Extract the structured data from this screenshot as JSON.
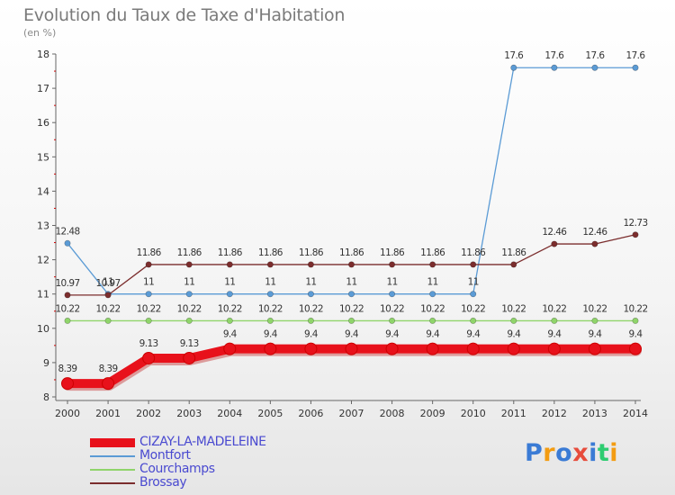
{
  "header": {
    "title": "Evolution du Taux de Taxe d'Habitation",
    "unit": "(en %)"
  },
  "logo": {
    "text": "Proxiti",
    "colors": [
      "#3a7bd5",
      "#f39c12",
      "#3a7bd5",
      "#e74c3c",
      "#3a7bd5",
      "#2ecc71",
      "#f39c12"
    ]
  },
  "chart_data": {
    "type": "line",
    "title": "Evolution du Taux de Taxe d'Habitation",
    "ylabel": "(en %)",
    "xlabel": "",
    "ylim": [
      8,
      18
    ],
    "yticks": [
      8,
      9,
      10,
      11,
      12,
      13,
      14,
      15,
      16,
      17,
      18
    ],
    "grid": false,
    "legend_position": "bottom-left",
    "x": [
      2000,
      2001,
      2002,
      2003,
      2004,
      2005,
      2006,
      2007,
      2008,
      2009,
      2010,
      2011,
      2012,
      2013,
      2014
    ],
    "series": [
      {
        "name": "Montfort",
        "color": "#5b9bd5",
        "style": "thin",
        "values": [
          12.48,
          11,
          11,
          11,
          11,
          11,
          11,
          11,
          11,
          11,
          11,
          17.6,
          17.6,
          17.6,
          17.6
        ],
        "labels": [
          "12.48",
          "11",
          "11",
          "11",
          "11",
          "11",
          "11",
          "11",
          "11",
          "11",
          "11",
          "17.6",
          "17.6",
          "17.6",
          "17.6"
        ]
      },
      {
        "name": "Brossay",
        "color": "#7b2d2d",
        "style": "thin",
        "values": [
          10.97,
          10.97,
          11.86,
          11.86,
          11.86,
          11.86,
          11.86,
          11.86,
          11.86,
          11.86,
          11.86,
          11.86,
          12.46,
          12.46,
          12.73
        ],
        "labels": [
          "10.97",
          "10.97",
          "11.86",
          "11.86",
          "11.86",
          "11.86",
          "11.86",
          "11.86",
          "11.86",
          "11.86",
          "11.86",
          "11.86",
          "12.46",
          "12.46",
          "12.73"
        ]
      },
      {
        "name": "Courchamps",
        "color": "#8fd46a",
        "style": "thin",
        "values": [
          10.22,
          10.22,
          10.22,
          10.22,
          10.22,
          10.22,
          10.22,
          10.22,
          10.22,
          10.22,
          10.22,
          10.22,
          10.22,
          10.22,
          10.22
        ],
        "labels": [
          "10.22",
          "10.22",
          "10.22",
          "10.22",
          "10.22",
          "10.22",
          "10.22",
          "10.22",
          "10.22",
          "10.22",
          "10.22",
          "10.22",
          "10.22",
          "10.22",
          "10.22"
        ]
      },
      {
        "name": "CIZAY-LA-MADELEINE",
        "color": "#e8111b",
        "style": "thick",
        "values": [
          8.39,
          8.39,
          9.13,
          9.13,
          9.4,
          9.4,
          9.4,
          9.4,
          9.4,
          9.4,
          9.4,
          9.4,
          9.4,
          9.4,
          9.4
        ],
        "labels": [
          "8.39",
          "8.39",
          "9.13",
          "9.13",
          "9.4",
          "9.4",
          "9.4",
          "9.4",
          "9.4",
          "9.4",
          "9.4",
          "9.4",
          "9.4",
          "9.4",
          "9.4"
        ]
      }
    ],
    "legend_order": [
      "CIZAY-LA-MADELEINE",
      "Montfort",
      "Courchamps",
      "Brossay"
    ]
  }
}
